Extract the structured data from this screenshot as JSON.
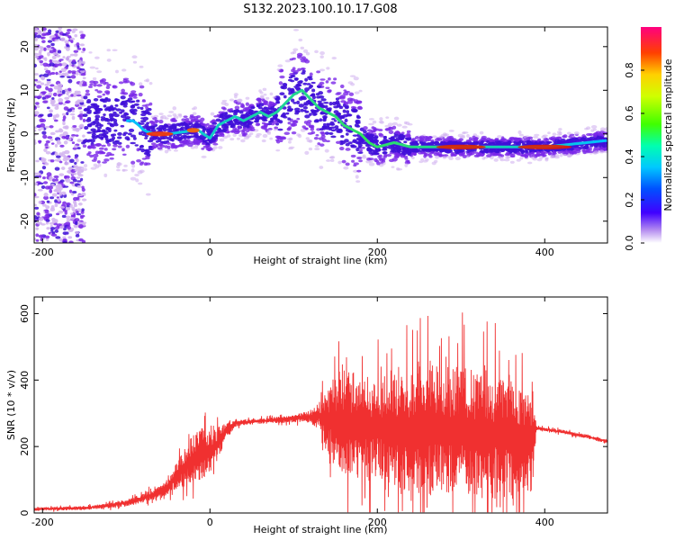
{
  "figure_title": "S132.2023.100.10.17.G08",
  "colorbar": {
    "label": "Normalized spectral amplitude",
    "ticks": [
      "0.0",
      "0.2",
      "0.4",
      "0.6",
      "0.8"
    ],
    "tick_values": [
      0.0,
      0.2,
      0.4,
      0.6,
      0.8
    ],
    "range": [
      0,
      1
    ]
  },
  "colors": {
    "snr_line": "#f03030",
    "spectro_faint": "#d2b4f0",
    "spectro_mid": "#7a28e8",
    "spectro_strong": "#4010d8"
  },
  "chart_data": [
    {
      "type": "heatmap",
      "id": "spectrogram",
      "xlabel": "Height of straight line (km)",
      "ylabel": "Frequency (Hz)",
      "xlim": [
        -210,
        475
      ],
      "ylim": [
        -25,
        24.5
      ],
      "xticks": [
        -200,
        0,
        200,
        400
      ],
      "xtick_labels": [
        "-200",
        "0",
        "200",
        "400"
      ],
      "yticks": [
        -20,
        -10,
        0,
        10,
        20
      ],
      "ytick_labels": [
        "-20",
        "-10",
        "0",
        "10",
        "20"
      ],
      "center_frequency_trace": {
        "x": [
          -100,
          -92,
          -85,
          -80,
          -75,
          -65,
          -50,
          -30,
          -15,
          -8,
          0,
          10,
          20,
          30,
          40,
          50,
          60,
          70,
          80,
          90,
          100,
          110,
          120,
          130,
          140,
          150,
          160,
          170,
          180,
          190,
          200,
          220,
          240,
          260,
          300,
          350,
          400,
          450,
          475
        ],
        "y": [
          3,
          3,
          2,
          1,
          0.5,
          0,
          0,
          0.5,
          1,
          0,
          -1,
          2,
          3,
          4,
          3,
          4,
          5,
          4,
          5,
          7,
          9,
          10,
          8,
          6,
          5,
          4,
          2,
          1,
          0,
          -2,
          -3,
          -2,
          -3,
          -3,
          -3,
          -3,
          -3,
          -2,
          -1.5
        ]
      }
    },
    {
      "type": "line",
      "id": "snr",
      "xlabel": "Height of straight line (km)",
      "ylabel": "SNR (10 * v/v)",
      "xlim": [
        -210,
        475
      ],
      "ylim": [
        0,
        650
      ],
      "xticks": [
        -200,
        0,
        200,
        400
      ],
      "xtick_labels": [
        "-200",
        "0",
        "200",
        "400"
      ],
      "yticks": [
        0,
        200,
        400,
        600
      ],
      "ytick_labels": [
        "0",
        "200",
        "400",
        "600"
      ],
      "envelope": {
        "x": [
          -210,
          -150,
          -120,
          -100,
          -80,
          -60,
          -50,
          -40,
          -30,
          -20,
          -10,
          0,
          10,
          20,
          30,
          50,
          80,
          100,
          120,
          130,
          140,
          150,
          160,
          170,
          180,
          200,
          220,
          240,
          260,
          280,
          300,
          320,
          340,
          360,
          380,
          385,
          390,
          420,
          450,
          475
        ],
        "mean": [
          12,
          15,
          22,
          30,
          45,
          60,
          80,
          110,
          140,
          165,
          180,
          185,
          210,
          250,
          270,
          275,
          280,
          285,
          290,
          292,
          280,
          275,
          270,
          265,
          260,
          255,
          250,
          250,
          250,
          248,
          245,
          240,
          235,
          230,
          225,
          225,
          255,
          245,
          230,
          215
        ],
        "spread": [
          5,
          6,
          8,
          10,
          15,
          20,
          25,
          40,
          60,
          70,
          80,
          60,
          50,
          30,
          10,
          8,
          10,
          12,
          20,
          40,
          90,
          140,
          170,
          170,
          160,
          150,
          170,
          190,
          200,
          200,
          200,
          200,
          190,
          180,
          170,
          160,
          6,
          6,
          6,
          6
        ]
      }
    }
  ]
}
